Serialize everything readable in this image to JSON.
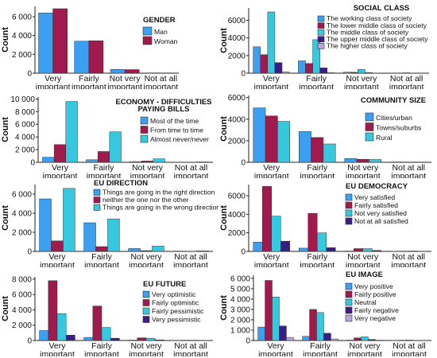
{
  "colors": {
    "cyan": "#36c8de",
    "blue": "#3b9ff2",
    "crimson": "#a01a4e",
    "navy": "#3c1d86",
    "lavender": "#b9a3dc"
  },
  "chart_data": [
    {
      "type": "bar",
      "title": "GENDER",
      "ylabel": "Count",
      "categories": [
        [
          "Very",
          "important"
        ],
        [
          "Fairly",
          "important"
        ],
        [
          "Not very",
          "important"
        ],
        [
          "Not at all",
          "important"
        ]
      ],
      "yticks": [
        0,
        2000,
        4000,
        6000
      ],
      "ytick_labels": [
        "0",
        "2 000",
        "4 000",
        "6 000"
      ],
      "ylim": [
        0,
        7100
      ],
      "legend_position": "right",
      "series": [
        {
          "name": "Man",
          "color": "#3b9ff2",
          "values": [
            6400,
            3400,
            400,
            30
          ]
        },
        {
          "name": "Woman",
          "color": "#a01a4e",
          "values": [
            6850,
            3450,
            380,
            30
          ]
        }
      ]
    },
    {
      "type": "bar",
      "title": "SOCIAL CLASS",
      "ylabel": "Count",
      "categories": [
        [
          "Very",
          "important"
        ],
        [
          "Fairly",
          "important"
        ],
        [
          "Not very",
          "important"
        ],
        [
          "Not at all",
          "important"
        ]
      ],
      "yticks": [
        0,
        2000,
        4000,
        6000
      ],
      "ytick_labels": [
        "0",
        "2000",
        "4000",
        "6000"
      ],
      "ylim": [
        0,
        7400
      ],
      "legend_position": "top-right",
      "series": [
        {
          "name": "The working class of society",
          "color": "#3b9ff2",
          "values": [
            3000,
            1400,
            120,
            20
          ]
        },
        {
          "name": "The lower middle class of society",
          "color": "#a01a4e",
          "values": [
            2100,
            1100,
            100,
            15
          ]
        },
        {
          "name": "The middle class of society",
          "color": "#36c8de",
          "values": [
            6950,
            3800,
            420,
            40
          ]
        },
        {
          "name": "The upper middle class of society",
          "color": "#3c1d86",
          "values": [
            1200,
            600,
            60,
            10
          ]
        },
        {
          "name": "The higher class of society",
          "color": "#b9a3dc",
          "values": [
            150,
            80,
            10,
            5
          ]
        }
      ]
    },
    {
      "type": "bar",
      "title": "ECONOMY - DIFFICULTIES PAYING BILLS",
      "title_lines": [
        "ECONOMY - DIFFICULTIES",
        "PAYING BILLS"
      ],
      "ylabel": "Count",
      "categories": [
        [
          "Very",
          "important"
        ],
        [
          "Fairly",
          "important"
        ],
        [
          "Not very",
          "important"
        ],
        [
          "Not at all",
          "important"
        ]
      ],
      "yticks": [
        0,
        2000,
        4000,
        6000,
        8000,
        10000
      ],
      "ytick_labels": [
        "0",
        "2 000",
        "4 000",
        "6 000",
        "8 000",
        "10 000"
      ],
      "ylim": [
        0,
        10300
      ],
      "legend_position": "right",
      "series": [
        {
          "name": "Most of the time",
          "color": "#3b9ff2",
          "values": [
            800,
            400,
            100,
            20
          ]
        },
        {
          "name": "From time to time",
          "color": "#a01a4e",
          "values": [
            2800,
            1700,
            200,
            20
          ]
        },
        {
          "name": "Almost never/never",
          "color": "#36c8de",
          "values": [
            9600,
            4800,
            550,
            60
          ]
        }
      ]
    },
    {
      "type": "bar",
      "title": "COMMUNITY SIZE",
      "ylabel": "Count",
      "categories": [
        [
          "Very",
          "important"
        ],
        [
          "Fairly",
          "important"
        ],
        [
          "Not very",
          "important"
        ],
        [
          "Not at all",
          "important"
        ]
      ],
      "yticks": [
        0,
        2000,
        4000,
        6000
      ],
      "ytick_labels": [
        "0",
        "2000",
        "4000",
        "6000"
      ],
      "ylim": [
        0,
        6200
      ],
      "legend_position": "right",
      "series": [
        {
          "name": "Cities/urban",
          "color": "#3b9ff2",
          "values": [
            5050,
            2850,
            350,
            30
          ]
        },
        {
          "name": "Towns/suburbs",
          "color": "#a01a4e",
          "values": [
            4300,
            2300,
            280,
            25
          ]
        },
        {
          "name": "Rural",
          "color": "#36c8de",
          "values": [
            3800,
            1700,
            260,
            25
          ]
        }
      ]
    },
    {
      "type": "bar",
      "title": "EU DIRECTION",
      "ylabel": "Count",
      "categories": [
        [
          "Very",
          "important"
        ],
        [
          "Fairly",
          "important"
        ],
        [
          "Not very",
          "important"
        ],
        [
          "Not at all",
          "important"
        ]
      ],
      "yticks": [
        0,
        2000,
        4000,
        6000
      ],
      "ytick_labels": [
        "0",
        "2 000",
        "4 000",
        "6 000"
      ],
      "ylim": [
        0,
        7000
      ],
      "legend_position": "top-right",
      "series": [
        {
          "name": "Things are going in the right direction",
          "color": "#3b9ff2",
          "values": [
            5500,
            3000,
            300,
            30
          ]
        },
        {
          "name": "neither the one nor the other",
          "color": "#a01a4e",
          "values": [
            1100,
            500,
            80,
            10
          ]
        },
        {
          "name": "Things are going in the wrong direction",
          "color": "#36c8de",
          "values": [
            6600,
            3400,
            550,
            60
          ]
        }
      ]
    },
    {
      "type": "bar",
      "title": "EU DEMOCRACY",
      "ylabel": "Count",
      "categories": [
        [
          "Very",
          "important"
        ],
        [
          "Fairly",
          "important"
        ],
        [
          "Not very",
          "important"
        ],
        [
          "Not at all",
          "important"
        ]
      ],
      "yticks": [
        0,
        2000,
        4000,
        6000
      ],
      "ytick_labels": [
        "0",
        "2000",
        "4000",
        "6000"
      ],
      "ylim": [
        0,
        7200
      ],
      "legend_position": "right",
      "series": [
        {
          "name": "Very satisfied",
          "color": "#3b9ff2",
          "values": [
            1000,
            350,
            40,
            10
          ]
        },
        {
          "name": "Fairly satisfied",
          "color": "#a01a4e",
          "values": [
            7000,
            4100,
            300,
            30
          ]
        },
        {
          "name": "Not very satisfied",
          "color": "#36c8de",
          "values": [
            3800,
            2000,
            300,
            40
          ]
        },
        {
          "name": "Not at all satisfied",
          "color": "#3c1d86",
          "values": [
            1100,
            400,
            100,
            20
          ]
        }
      ]
    },
    {
      "type": "bar",
      "title": "EU FUTURE",
      "ylabel": "Count",
      "categories": [
        [
          "Very",
          "important"
        ],
        [
          "Fairly",
          "important"
        ],
        [
          "Not very",
          "important"
        ],
        [
          "Not at all",
          "important"
        ]
      ],
      "yticks": [
        0,
        2000,
        4000,
        6000,
        8000
      ],
      "ytick_labels": [
        "0",
        "2 000",
        "4 000",
        "6 000",
        "8 000"
      ],
      "ylim": [
        0,
        8300
      ],
      "legend_position": "right",
      "series": [
        {
          "name": "Very optimistic",
          "color": "#3b9ff2",
          "values": [
            1300,
            400,
            50,
            10
          ]
        },
        {
          "name": "Fairly optimistic",
          "color": "#a01a4e",
          "values": [
            7800,
            4500,
            350,
            40
          ]
        },
        {
          "name": "Fairly pessimistic",
          "color": "#36c8de",
          "values": [
            3500,
            1700,
            300,
            40
          ]
        },
        {
          "name": "Very pessimistic",
          "color": "#3c1d86",
          "values": [
            700,
            300,
            80,
            20
          ]
        }
      ]
    },
    {
      "type": "bar",
      "title": "EU IMAGE",
      "ylabel": "Count",
      "categories": [
        [
          "Very",
          "important"
        ],
        [
          "Fairly",
          "important"
        ],
        [
          "Not very",
          "important"
        ],
        [
          "Not at all",
          "important"
        ]
      ],
      "yticks": [
        0,
        1000,
        2000,
        3000,
        4000,
        5000,
        6000
      ],
      "ytick_labels": [
        "0",
        "1 000",
        "2 000",
        "3 000",
        "4 000",
        "5 000",
        "6 000"
      ],
      "ylim": [
        0,
        6300
      ],
      "legend_position": "right",
      "series": [
        {
          "name": "Very positive",
          "color": "#3b9ff2",
          "values": [
            1300,
            400,
            40,
            10
          ]
        },
        {
          "name": "Fairly positive",
          "color": "#a01a4e",
          "values": [
            5800,
            3000,
            250,
            30
          ]
        },
        {
          "name": "Neutral",
          "color": "#36c8de",
          "values": [
            4200,
            2700,
            350,
            40
          ]
        },
        {
          "name": "Fairly negative",
          "color": "#3c1d86",
          "values": [
            1400,
            700,
            100,
            20
          ]
        },
        {
          "name": "Very negative",
          "color": "#b9a3dc",
          "values": [
            300,
            150,
            30,
            10
          ]
        }
      ]
    }
  ]
}
